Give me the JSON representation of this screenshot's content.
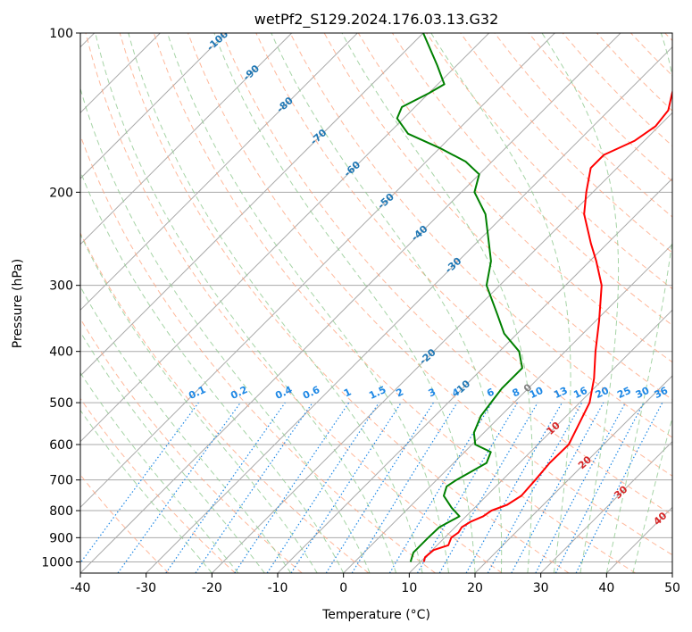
{
  "chart_data": {
    "type": "line",
    "diagram": "skew-T log-p",
    "title": "wetPf2_S129.2024.176.03.13.G32",
    "xlabel": "Temperature (°C)",
    "ylabel": "Pressure (hPa)",
    "xlim": [
      -40,
      50
    ],
    "ylim": [
      1050,
      100
    ],
    "y_scale": "log",
    "grid": true,
    "x_ticks": [
      "-40",
      "-30",
      "-20",
      "-10",
      "0",
      "10",
      "20",
      "30",
      "40",
      "50"
    ],
    "y_ticks": [
      "100",
      "200",
      "300",
      "400",
      "500",
      "600",
      "700",
      "800",
      "900",
      "1000"
    ],
    "skew_isotherm_labels": [
      "-100",
      "-90",
      "-80",
      "-70",
      "-60",
      "-50",
      "-40",
      "-30",
      "-20",
      "-10",
      "0",
      "10",
      "20",
      "30",
      "40"
    ],
    "mixing_ratio_labels": [
      "0.1",
      "0.2",
      "0.4",
      "0.6",
      "1",
      "1.5",
      "2",
      "3",
      "4",
      "6",
      "8",
      "10",
      "13",
      "16",
      "20",
      "25",
      "30",
      "36"
    ],
    "colors": {
      "temperature": "#ff0000",
      "dewpoint": "#008000",
      "isotherm": "#aaaaaa",
      "dry_adiabat": "#ffa07a",
      "moist_adiabat": "#90c990",
      "mixing_ratio": "#1e88e5",
      "label_cold": "#1f77b4",
      "label_warm": "#d62728"
    },
    "series": [
      {
        "name": "Temperature",
        "points": [
          {
            "p": 1000,
            "t": 10.5
          },
          {
            "p": 980,
            "t": 10.0
          },
          {
            "p": 950,
            "t": 10.2
          },
          {
            "p": 930,
            "t": 11.7
          },
          {
            "p": 900,
            "t": 11.0
          },
          {
            "p": 880,
            "t": 11.3
          },
          {
            "p": 860,
            "t": 11.0
          },
          {
            "p": 840,
            "t": 11.5
          },
          {
            "p": 820,
            "t": 12.6
          },
          {
            "p": 800,
            "t": 13.0
          },
          {
            "p": 780,
            "t": 14.5
          },
          {
            "p": 750,
            "t": 15.3
          },
          {
            "p": 700,
            "t": 15.0
          },
          {
            "p": 650,
            "t": 14.6
          },
          {
            "p": 600,
            "t": 14.7
          },
          {
            "p": 570,
            "t": 13.8
          },
          {
            "p": 500,
            "t": 11.5
          },
          {
            "p": 450,
            "t": 8.5
          },
          {
            "p": 400,
            "t": 4.6
          },
          {
            "p": 350,
            "t": 0.5
          },
          {
            "p": 300,
            "t": -4.5
          },
          {
            "p": 270,
            "t": -9.0
          },
          {
            "p": 250,
            "t": -12.5
          },
          {
            "p": 220,
            "t": -18.0
          },
          {
            "p": 200,
            "t": -21.0
          },
          {
            "p": 180,
            "t": -24.0
          },
          {
            "p": 170,
            "t": -24.0
          },
          {
            "p": 160,
            "t": -21.5
          },
          {
            "p": 150,
            "t": -20.5
          },
          {
            "p": 140,
            "t": -21.0
          },
          {
            "p": 130,
            "t": -23.0
          },
          {
            "p": 120,
            "t": -25.0
          },
          {
            "p": 110,
            "t": -27.0
          },
          {
            "p": 100,
            "t": -30.0
          }
        ]
      },
      {
        "name": "Dewpoint",
        "points": [
          {
            "p": 1000,
            "t": 8.5
          },
          {
            "p": 960,
            "t": 7.5
          },
          {
            "p": 930,
            "t": 7.5
          },
          {
            "p": 900,
            "t": 7.5
          },
          {
            "p": 860,
            "t": 7.6
          },
          {
            "p": 820,
            "t": 9.0
          },
          {
            "p": 790,
            "t": 6.5
          },
          {
            "p": 750,
            "t": 3.5
          },
          {
            "p": 720,
            "t": 2.5
          },
          {
            "p": 700,
            "t": 3.0
          },
          {
            "p": 650,
            "t": 5.0
          },
          {
            "p": 620,
            "t": 4.0
          },
          {
            "p": 600,
            "t": 0.5
          },
          {
            "p": 570,
            "t": -1.5
          },
          {
            "p": 530,
            "t": -3.0
          },
          {
            "p": 500,
            "t": -3.5
          },
          {
            "p": 470,
            "t": -4.0
          },
          {
            "p": 430,
            "t": -4.0
          },
          {
            "p": 400,
            "t": -7.0
          },
          {
            "p": 370,
            "t": -12.0
          },
          {
            "p": 340,
            "t": -16.0
          },
          {
            "p": 300,
            "t": -22.0
          },
          {
            "p": 270,
            "t": -25.0
          },
          {
            "p": 250,
            "t": -28.0
          },
          {
            "p": 220,
            "t": -33.0
          },
          {
            "p": 200,
            "t": -38.0
          },
          {
            "p": 185,
            "t": -40.0
          },
          {
            "p": 175,
            "t": -44.0
          },
          {
            "p": 165,
            "t": -50.0
          },
          {
            "p": 155,
            "t": -57.0
          },
          {
            "p": 145,
            "t": -61.0
          },
          {
            "p": 138,
            "t": -62.0
          },
          {
            "p": 130,
            "t": -60.0
          },
          {
            "p": 125,
            "t": -59.0
          },
          {
            "p": 115,
            "t": -63.0
          },
          {
            "p": 100,
            "t": -70.0
          }
        ]
      }
    ]
  }
}
